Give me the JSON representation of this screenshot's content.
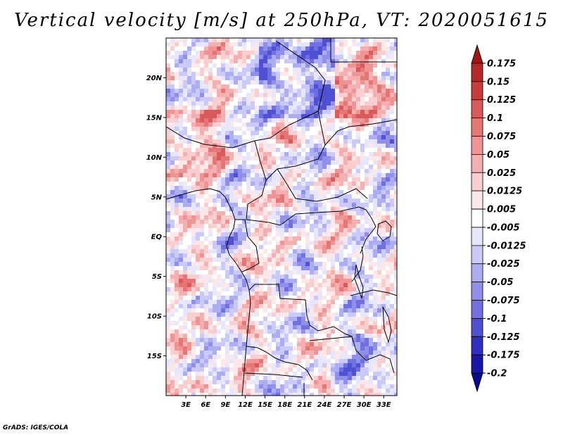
{
  "title": "Vertical velocity [m/s] at 250hPa, VT: 2020051615",
  "credit": "GrADS: IGES/COLA",
  "map": {
    "lon_range": [
      0,
      35
    ],
    "lat_range": [
      -20,
      25
    ],
    "lat_ticks": [
      {
        "value": 20,
        "label": "20N"
      },
      {
        "value": 15,
        "label": "15N"
      },
      {
        "value": 10,
        "label": "10N"
      },
      {
        "value": 5,
        "label": "5N"
      },
      {
        "value": 0,
        "label": "EQ"
      },
      {
        "value": -5,
        "label": "5S"
      },
      {
        "value": -10,
        "label": "10S"
      },
      {
        "value": -15,
        "label": "15S"
      }
    ],
    "lon_ticks": [
      {
        "value": 3,
        "label": "3E"
      },
      {
        "value": 6,
        "label": "6E"
      },
      {
        "value": 9,
        "label": "9E"
      },
      {
        "value": 12,
        "label": "12E"
      },
      {
        "value": 15,
        "label": "15E"
      },
      {
        "value": 18,
        "label": "18E"
      },
      {
        "value": 21,
        "label": "21E"
      },
      {
        "value": 24,
        "label": "24E"
      },
      {
        "value": 27,
        "label": "27E"
      },
      {
        "value": 30,
        "label": "30E"
      },
      {
        "value": 33,
        "label": "33E"
      }
    ]
  },
  "colorbar": {
    "levels": [
      "0.175",
      "0.15",
      "0.125",
      "0.1",
      "0.075",
      "0.05",
      "0.025",
      "0.0125",
      "0.005",
      "-0.005",
      "-0.0125",
      "-0.025",
      "-0.05",
      "-0.075",
      "-0.1",
      "-0.125",
      "-0.175",
      "-0.2"
    ],
    "colors": [
      "#a01414",
      "#b42828",
      "#c83c3c",
      "#d85a5a",
      "#e47676",
      "#ee9494",
      "#f4b0b0",
      "#f8cece",
      "#fce8e8",
      "#ffffff",
      "#e6e6fc",
      "#cacaf8",
      "#adadf2",
      "#9090ea",
      "#7070e0",
      "#5050d2",
      "#3030c0",
      "#1818a8",
      "#0a0a8c"
    ]
  }
}
